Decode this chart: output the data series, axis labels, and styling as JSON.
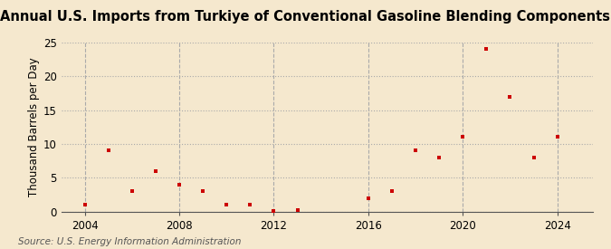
{
  "title": "Annual U.S. Imports from Turkiye of Conventional Gasoline Blending Components",
  "ylabel": "Thousand Barrels per Day",
  "source": "Source: U.S. Energy Information Administration",
  "background_color": "#f5e8ce",
  "plot_background_color": "#f5e8ce",
  "marker_color": "#cc0000",
  "x": [
    2004,
    2005,
    2006,
    2007,
    2008,
    2009,
    2010,
    2011,
    2012,
    2013,
    2016,
    2017,
    2018,
    2019,
    2020,
    2021,
    2022,
    2023,
    2024
  ],
  "y": [
    1,
    9,
    3,
    6,
    4,
    3,
    1,
    1,
    0.1,
    0.2,
    2,
    3,
    9,
    8,
    11,
    24,
    17,
    8,
    11
  ],
  "xlim": [
    2003,
    2025.5
  ],
  "ylim": [
    0,
    25
  ],
  "xticks": [
    2004,
    2008,
    2012,
    2016,
    2020,
    2024
  ],
  "yticks": [
    0,
    5,
    10,
    15,
    20,
    25
  ],
  "grid_color": "#aaaaaa",
  "title_fontsize": 10.5,
  "label_fontsize": 8.5,
  "tick_fontsize": 8.5,
  "source_fontsize": 7.5
}
